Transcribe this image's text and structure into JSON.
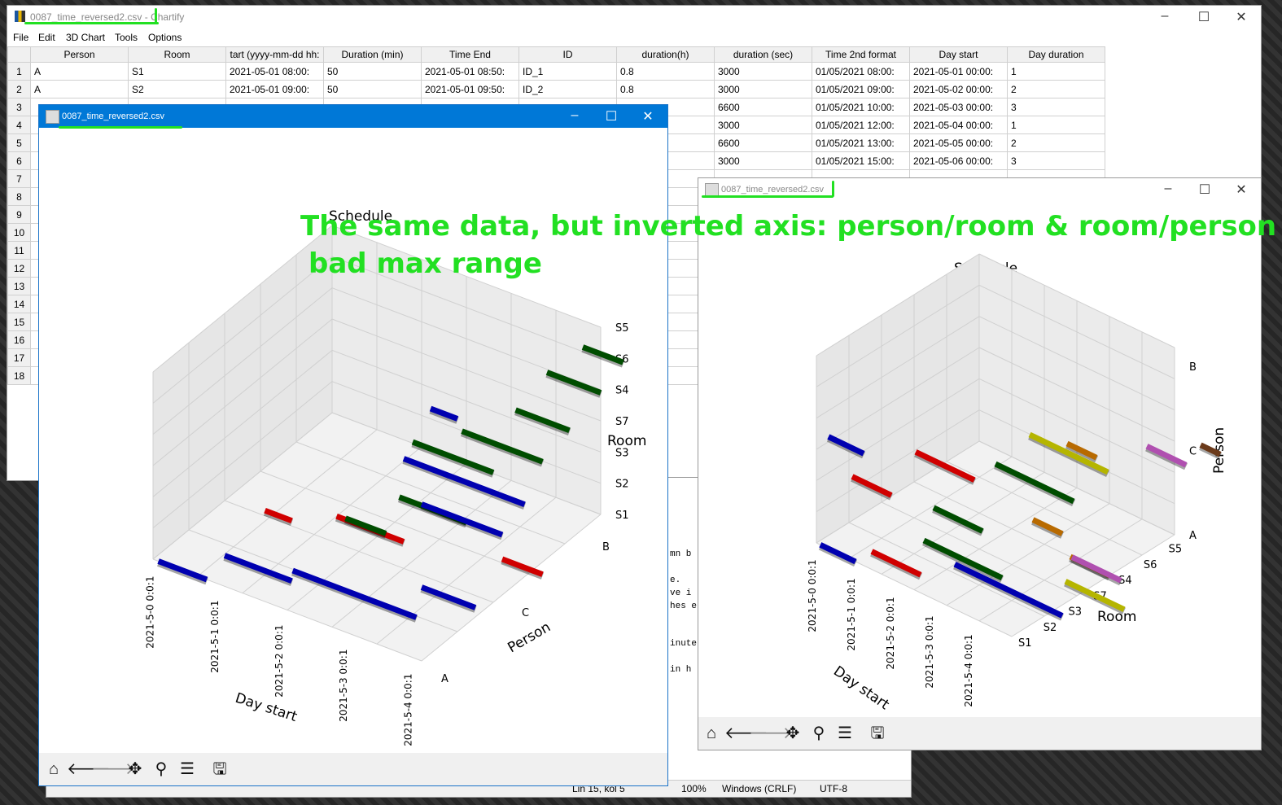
{
  "main_window": {
    "title": "0087_time_reversed2.csv - Chartify",
    "menu": [
      "File",
      "Edit",
      "3D Chart",
      "Tools",
      "Options"
    ],
    "columns": [
      "Person",
      "Room",
      "tart (yyyy-mm-dd hh:",
      "Duration (min)",
      "Time End",
      "ID",
      "duration(h)",
      "duration (sec)",
      "Time 2nd format",
      "Day start",
      "Day duration"
    ],
    "rows": [
      [
        "A",
        "S1",
        "2021-05-01 08:00:",
        "50",
        "2021-05-01 08:50:",
        "ID_1",
        "0.8",
        "3000",
        "01/05/2021 08:00:",
        "2021-05-01 00:00:",
        "1"
      ],
      [
        "A",
        "S2",
        "2021-05-01 09:00:",
        "50",
        "2021-05-01 09:50:",
        "ID_2",
        "0.8",
        "3000",
        "01/05/2021 09:00:",
        "2021-05-02 00:00:",
        "2"
      ],
      [
        "",
        "",
        "",
        "",
        "",
        "",
        "",
        "6600",
        "01/05/2021 10:00:",
        "2021-05-03 00:00:",
        "3"
      ],
      [
        "",
        "",
        "",
        "",
        "",
        "",
        "",
        "3000",
        "01/05/2021 12:00:",
        "2021-05-04 00:00:",
        "1"
      ],
      [
        "",
        "",
        "",
        "",
        "",
        "",
        "",
        "6600",
        "01/05/2021 13:00:",
        "2021-05-05 00:00:",
        "2"
      ],
      [
        "",
        "",
        "",
        "",
        "",
        "",
        "",
        "3000",
        "01/05/2021 15:00:",
        "2021-05-06 00:00:",
        "3"
      ]
    ],
    "row_numbers": [
      "1",
      "2",
      "3",
      "4",
      "5",
      "6",
      "7",
      "8",
      "9",
      "10",
      "11",
      "12",
      "13",
      "14",
      "15",
      "16",
      "17",
      "18"
    ]
  },
  "editor": {
    "code_fragments": [
      "mn b",
      "e.",
      "ve i",
      "hes e",
      "inute",
      "in h"
    ],
    "status": {
      "position": "Lin 15, kol 5",
      "zoom": "100%",
      "eol": "Windows (CRLF)",
      "encoding": "UTF-8"
    }
  },
  "plot_left": {
    "window_title": "0087_time_reversed2.csv",
    "chart_title": "Schedule",
    "xlabel": "Day start",
    "ylabel": "Person",
    "zlabel": "Room",
    "x_ticks": [
      "2021-5-0 0:0:1",
      "2021-5-1 0:0:1",
      "2021-5-2 0:0:1",
      "2021-5-3 0:0:1",
      "2021-5-4 0:0:1"
    ],
    "y_ticks": [
      "A",
      "C",
      "B"
    ],
    "z_ticks": [
      "S1",
      "S2",
      "S3",
      "S7",
      "S4",
      "S6",
      "S5"
    ]
  },
  "plot_right": {
    "window_title": "0087_time_reversed2.csv",
    "chart_title": "Schedule",
    "xlabel": "Day start",
    "ylabel": "Room",
    "zlabel": "Person",
    "x_ticks": [
      "2021-5-0 0:0:1",
      "2021-5-1 0:0:1",
      "2021-5-2 0:0:1",
      "2021-5-3 0:0:1",
      "2021-5-4 0:0:1"
    ],
    "y_ticks": [
      "S1",
      "S2",
      "S3",
      "S7",
      "S4",
      "S6",
      "S5"
    ],
    "z_ticks": [
      "A",
      "C",
      "B"
    ]
  },
  "annotation": {
    "line1": "The same data, but inverted axis: person/room & room/person",
    "line2": "bad max range"
  },
  "colors": {
    "accent": "#22e022",
    "titlebar_active": "#0078d7"
  }
}
